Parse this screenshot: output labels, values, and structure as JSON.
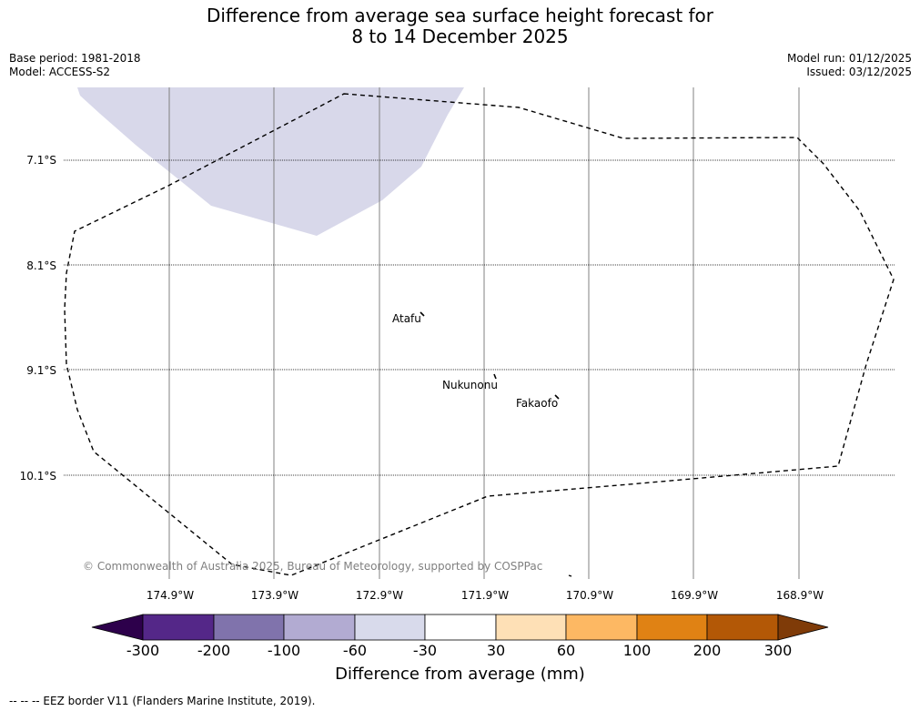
{
  "title": {
    "line1": "Difference from average sea surface height forecast for",
    "line2": "8 to 14 December 2025"
  },
  "meta": {
    "base_period": "Base period: 1981-2018",
    "model": "Model: ACCESS-S2",
    "model_run": "Model run: 01/12/2025",
    "issued": "Issued: 03/12/2025"
  },
  "map": {
    "lat_labels": [
      "7.1°S",
      "8.1°S",
      "9.1°S",
      "10.1°S"
    ],
    "lon_labels": [
      "174.9°W",
      "173.9°W",
      "172.9°W",
      "171.9°W",
      "170.9°W",
      "169.9°W",
      "168.9°W"
    ],
    "places": [
      "Atafu",
      "Nukunonu",
      "Fakaofo"
    ],
    "copyright": "© Commonwealth of Australia 2025, Bureau of Meteorology, supported by COSPPac",
    "anomaly_fill_color": "#d8d8ea"
  },
  "colorbar": {
    "ticks": [
      "-300",
      "-200",
      "-100",
      "-60",
      "-30",
      "30",
      "60",
      "100",
      "200",
      "300"
    ],
    "colors": [
      "#2d004b",
      "#542788",
      "#8073ac",
      "#b2abd2",
      "#d8daeb",
      "#ffffff",
      "#fee0b6",
      "#fdb863",
      "#e08214",
      "#b35806",
      "#7f3b08"
    ],
    "label": "Difference from average (mm)"
  },
  "footnote": "--  --  -- EEZ border V11 (Flanders Marine Institute, 2019)."
}
